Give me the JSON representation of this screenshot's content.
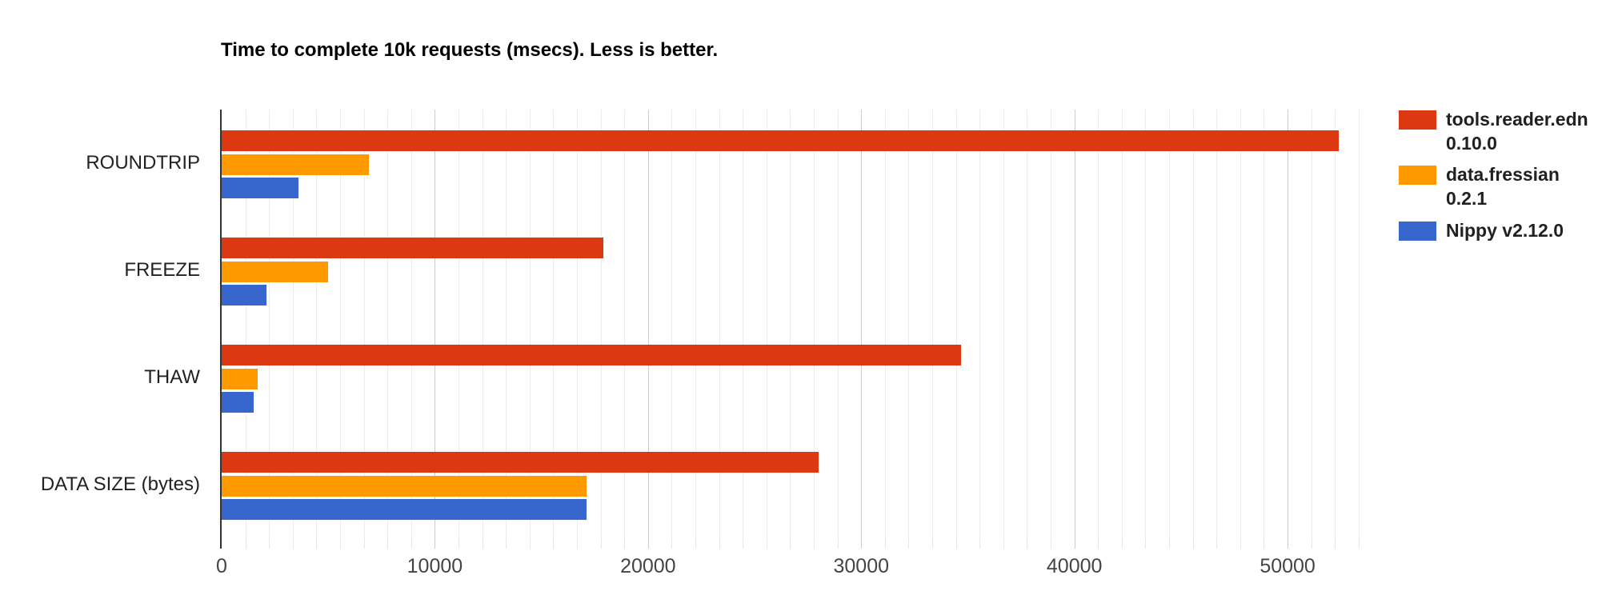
{
  "chart_data": {
    "type": "bar",
    "orientation": "horizontal",
    "title": "Time to complete 10k requests (msecs). Less is better.",
    "categories": [
      "ROUNDTRIP",
      "FREEZE",
      "THAW",
      "DATA SIZE (bytes)"
    ],
    "series": [
      {
        "name": "tools.reader.edn 0.10.0",
        "name_lines": [
          "tools.reader.edn",
          "0.10.0"
        ],
        "color": "#dc3912",
        "values": [
          52400,
          17900,
          34700,
          28000
        ]
      },
      {
        "name": "data.fressian 0.2.1",
        "name_lines": [
          "data.fressian",
          "0.2.1"
        ],
        "color": "#ff9900",
        "values": [
          6900,
          5000,
          1700,
          17100
        ]
      },
      {
        "name": "Nippy v2.12.0",
        "name_lines": [
          "Nippy v2.12.0"
        ],
        "color": "#3766cd",
        "values": [
          3600,
          2100,
          1500,
          17100
        ]
      }
    ],
    "x_tick_values": [
      0,
      10000,
      20000,
      30000,
      40000,
      50000
    ],
    "x_tick_labels": [
      "0",
      "10000",
      "20000",
      "30000",
      "40000",
      "50000"
    ],
    "xlim": [
      0,
      53600
    ],
    "minor_gridlines_per_major": 8,
    "grid": true,
    "legend_position": "right",
    "xlabel": "",
    "ylabel": ""
  }
}
